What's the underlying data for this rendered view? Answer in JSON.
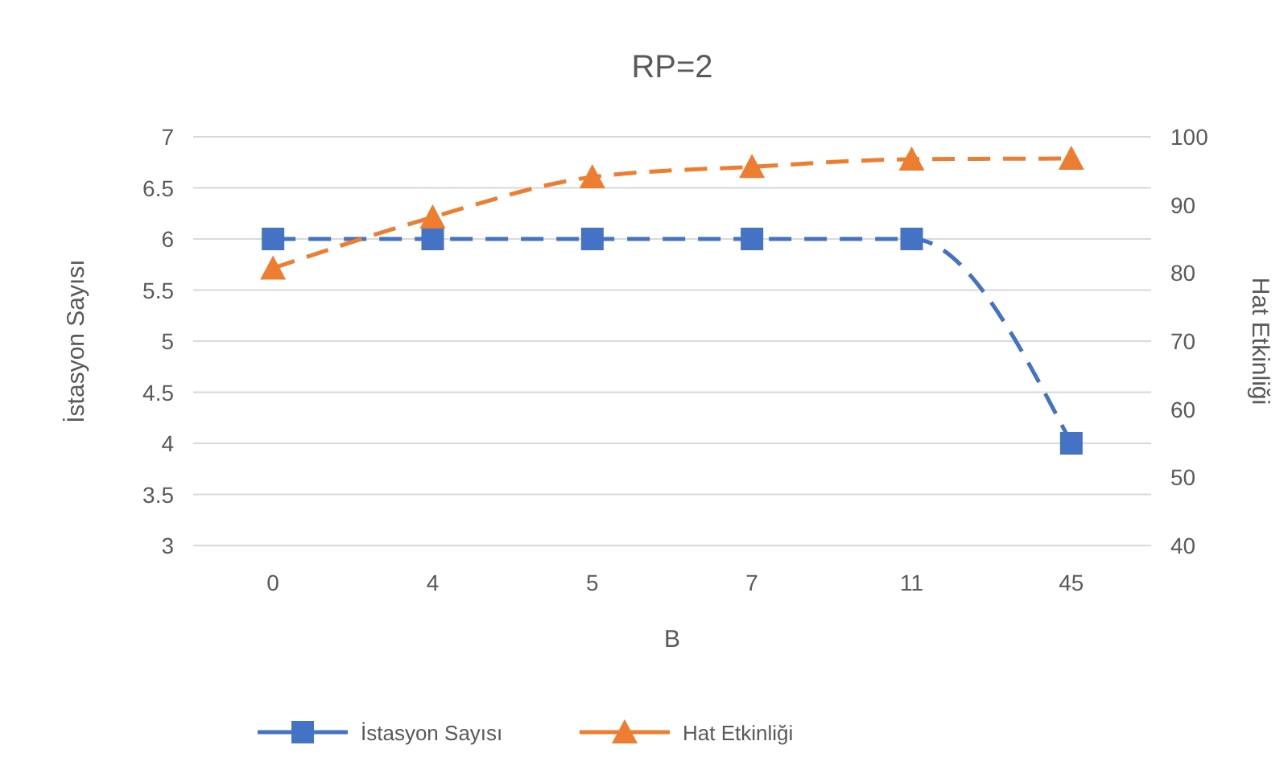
{
  "chart_data": {
    "type": "line",
    "title": "RP=2",
    "xlabel": "B",
    "ylabel": "İstasyon Sayısı",
    "y2label": "Hat Etkinliği",
    "categories": [
      "0",
      "4",
      "5",
      "7",
      "11",
      "45"
    ],
    "series": [
      {
        "name": "İstasyon Sayısı",
        "color": "#4472c4",
        "values": [
          6,
          6,
          6,
          6,
          6,
          4
        ],
        "marker": "square",
        "line_style": "dashed"
      },
      {
        "name": "Hat Etkinliği",
        "color": "#ed7d31",
        "values": [
          80.7,
          88.2,
          94.1,
          95.6,
          96.7,
          96.8
        ],
        "axis": "y2",
        "marker": "triangle",
        "line_style": "dashed"
      }
    ],
    "ylim": [
      3,
      7
    ],
    "yticks": [
      3,
      3.5,
      4,
      4.5,
      5,
      5.5,
      6,
      6.5,
      7
    ],
    "y2lim": [
      40,
      100
    ],
    "y2ticks": [
      40,
      50,
      60,
      70,
      80,
      90,
      100
    ],
    "grid": "y",
    "legend": "bottom"
  }
}
